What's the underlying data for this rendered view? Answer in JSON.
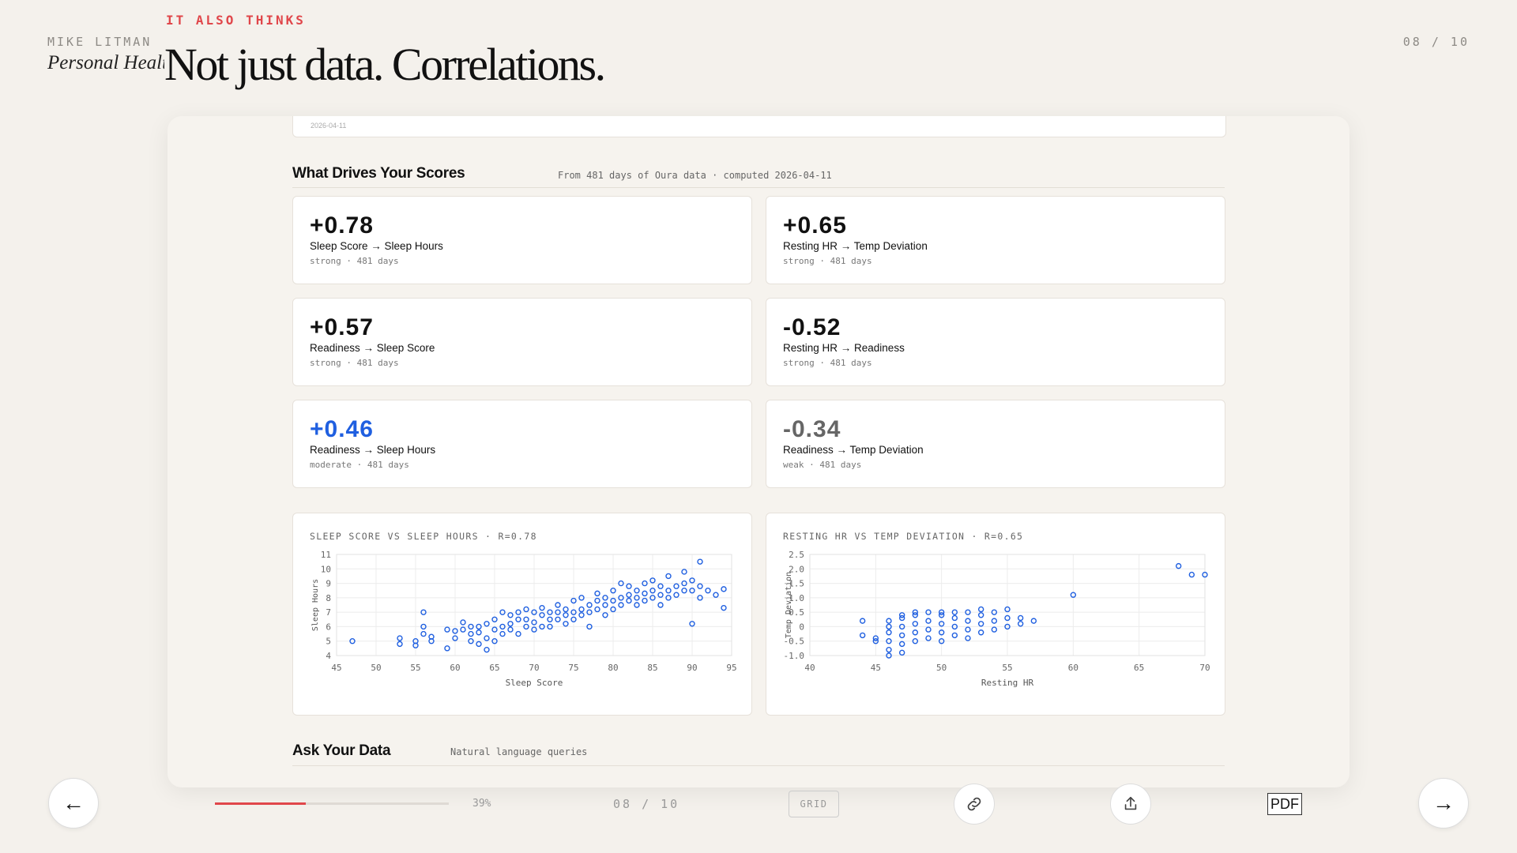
{
  "header": {
    "author": "MIKE LITMAN",
    "subtitle": "Personal Health OS",
    "kicker": "IT ALSO THINKS",
    "headline": "Not just data. Correlations.",
    "page_indicator": "08 / 10"
  },
  "section1": {
    "title": "What Drives Your Scores",
    "subtitle": "From 481 days of Oura data · computed 2026-04-11"
  },
  "cards": [
    {
      "value": "+0.78",
      "label": "Sleep Score → Sleep Hours",
      "meta": "strong · 481 days",
      "color": "#111111"
    },
    {
      "value": "+0.65",
      "label": "Resting HR → Temp Deviation",
      "meta": "strong · 481 days",
      "color": "#111111"
    },
    {
      "value": "+0.57",
      "label": "Readiness → Sleep Score",
      "meta": "strong · 481 days",
      "color": "#111111"
    },
    {
      "value": "-0.52",
      "label": "Resting HR → Readiness",
      "meta": "strong · 481 days",
      "color": "#111111"
    },
    {
      "value": "+0.46",
      "label": "Readiness → Sleep Hours",
      "meta": "moderate · 481 days",
      "color": "#1f5fe0"
    },
    {
      "value": "-0.34",
      "label": "Readiness → Temp Deviation",
      "meta": "weak · 481 days",
      "color": "#666666"
    }
  ],
  "chart_data": [
    {
      "type": "scatter",
      "title": "SLEEP SCORE VS SLEEP HOURS · R=0.78",
      "xlabel": "Sleep Score",
      "ylabel": "Sleep Hours",
      "xlim": [
        45,
        95
      ],
      "ylim": [
        4,
        11
      ],
      "xticks": [
        45,
        50,
        55,
        60,
        65,
        70,
        75,
        80,
        85,
        90,
        95
      ],
      "yticks": [
        4,
        5,
        6,
        7,
        8,
        9,
        10,
        11
      ],
      "grid": true,
      "color": "#1f5fe0",
      "points": [
        [
          47,
          5
        ],
        [
          53,
          5.2
        ],
        [
          53,
          4.8
        ],
        [
          55,
          5
        ],
        [
          55,
          4.7
        ],
        [
          56,
          5.5
        ],
        [
          56,
          6
        ],
        [
          56,
          7
        ],
        [
          57,
          5.3
        ],
        [
          57,
          5
        ],
        [
          59,
          4.5
        ],
        [
          59,
          5.8
        ],
        [
          60,
          5.2
        ],
        [
          60,
          5.7
        ],
        [
          61,
          5.8
        ],
        [
          61,
          6.3
        ],
        [
          62,
          5
        ],
        [
          62,
          6
        ],
        [
          62,
          5.5
        ],
        [
          63,
          5.6
        ],
        [
          63,
          6
        ],
        [
          63,
          4.8
        ],
        [
          64,
          5.2
        ],
        [
          64,
          6.2
        ],
        [
          64,
          4.4
        ],
        [
          65,
          5.8
        ],
        [
          65,
          6.5
        ],
        [
          65,
          5
        ],
        [
          66,
          6
        ],
        [
          66,
          7
        ],
        [
          66,
          5.5
        ],
        [
          67,
          6.2
        ],
        [
          67,
          5.8
        ],
        [
          67,
          6.8
        ],
        [
          68,
          6.5
        ],
        [
          68,
          5.5
        ],
        [
          68,
          7
        ],
        [
          69,
          6
        ],
        [
          69,
          7.2
        ],
        [
          69,
          6.5
        ],
        [
          70,
          6.3
        ],
        [
          70,
          7
        ],
        [
          70,
          5.8
        ],
        [
          71,
          6.8
        ],
        [
          71,
          6
        ],
        [
          71,
          7.3
        ],
        [
          72,
          6.5
        ],
        [
          72,
          7
        ],
        [
          72,
          6
        ],
        [
          73,
          7
        ],
        [
          73,
          6.5
        ],
        [
          73,
          7.5
        ],
        [
          74,
          6.8
        ],
        [
          74,
          7.2
        ],
        [
          74,
          6.2
        ],
        [
          75,
          7
        ],
        [
          75,
          6.5
        ],
        [
          75,
          7.8
        ],
        [
          76,
          7.2
        ],
        [
          76,
          6.8
        ],
        [
          76,
          8
        ],
        [
          77,
          7.5
        ],
        [
          77,
          7
        ],
        [
          77,
          6
        ],
        [
          78,
          7.8
        ],
        [
          78,
          7.2
        ],
        [
          78,
          8.3
        ],
        [
          79,
          7.5
        ],
        [
          79,
          8
        ],
        [
          79,
          6.8
        ],
        [
          80,
          7.8
        ],
        [
          80,
          8.5
        ],
        [
          80,
          7.2
        ],
        [
          81,
          8
        ],
        [
          81,
          7.5
        ],
        [
          81,
          9
        ],
        [
          82,
          8.2
        ],
        [
          82,
          7.8
        ],
        [
          82,
          8.8
        ],
        [
          83,
          8
        ],
        [
          83,
          8.5
        ],
        [
          83,
          7.5
        ],
        [
          84,
          8.3
        ],
        [
          84,
          9
        ],
        [
          84,
          7.8
        ],
        [
          85,
          8.5
        ],
        [
          85,
          8
        ],
        [
          85,
          9.2
        ],
        [
          86,
          8.2
        ],
        [
          86,
          8.8
        ],
        [
          86,
          7.5
        ],
        [
          87,
          8.5
        ],
        [
          87,
          9.5
        ],
        [
          87,
          8
        ],
        [
          88,
          8.8
        ],
        [
          88,
          8.2
        ],
        [
          89,
          9
        ],
        [
          89,
          8.5
        ],
        [
          89,
          9.8
        ],
        [
          90,
          8.5
        ],
        [
          90,
          9.2
        ],
        [
          90,
          6.2
        ],
        [
          91,
          8.8
        ],
        [
          91,
          8
        ],
        [
          91,
          10.5
        ],
        [
          92,
          8.5
        ],
        [
          93,
          8.2
        ],
        [
          94,
          8.6
        ],
        [
          94,
          7.3
        ]
      ]
    },
    {
      "type": "scatter",
      "title": "RESTING HR VS TEMP DEVIATION · R=0.65",
      "xlabel": "Resting HR",
      "ylabel": "Temp Deviation",
      "xlim": [
        40,
        70
      ],
      "ylim": [
        -1.0,
        2.5
      ],
      "xticks": [
        40,
        45,
        50,
        55,
        60,
        65,
        70
      ],
      "yticks": [
        -1.0,
        -0.5,
        0,
        0.5,
        1.0,
        1.5,
        2.0,
        2.5
      ],
      "grid": true,
      "color": "#1f5fe0",
      "points": [
        [
          44,
          0.2
        ],
        [
          44,
          -0.3
        ],
        [
          45,
          -0.5
        ],
        [
          45,
          -0.4
        ],
        [
          46,
          -0.8
        ],
        [
          46,
          -0.5
        ],
        [
          46,
          -0.2
        ],
        [
          46,
          0
        ],
        [
          46,
          0.2
        ],
        [
          46,
          -1.0
        ],
        [
          47,
          -0.6
        ],
        [
          47,
          -0.3
        ],
        [
          47,
          0
        ],
        [
          47,
          0.3
        ],
        [
          47,
          0.4
        ],
        [
          47,
          -0.9
        ],
        [
          48,
          -0.5
        ],
        [
          48,
          -0.2
        ],
        [
          48,
          0.1
        ],
        [
          48,
          0.4
        ],
        [
          48,
          0.5
        ],
        [
          49,
          -0.4
        ],
        [
          49,
          -0.1
        ],
        [
          49,
          0.2
        ],
        [
          49,
          0.5
        ],
        [
          50,
          -0.5
        ],
        [
          50,
          -0.2
        ],
        [
          50,
          0.1
        ],
        [
          50,
          0.4
        ],
        [
          50,
          0.5
        ],
        [
          51,
          -0.3
        ],
        [
          51,
          0
        ],
        [
          51,
          0.3
        ],
        [
          51,
          0.5
        ],
        [
          52,
          -0.4
        ],
        [
          52,
          -0.1
        ],
        [
          52,
          0.2
        ],
        [
          52,
          0.5
        ],
        [
          53,
          -0.2
        ],
        [
          53,
          0.1
        ],
        [
          53,
          0.4
        ],
        [
          53,
          0.6
        ],
        [
          54,
          -0.1
        ],
        [
          54,
          0.2
        ],
        [
          54,
          0.5
        ],
        [
          55,
          0
        ],
        [
          55,
          0.3
        ],
        [
          55,
          0.6
        ],
        [
          56,
          0.1
        ],
        [
          56,
          0.3
        ],
        [
          57,
          0.2
        ],
        [
          60,
          1.1
        ],
        [
          68,
          2.1
        ],
        [
          69,
          1.8
        ],
        [
          70,
          1.8
        ]
      ]
    }
  ],
  "section2": {
    "title": "Ask Your Data",
    "subtitle": "Natural language queries"
  },
  "footer": {
    "prev_icon": "←",
    "next_icon": "→",
    "progress_fraction": 0.39,
    "progress_label": "39%",
    "page_indicator": "08 / 10",
    "grid_label": "GRID",
    "pdf_label": "PDF"
  }
}
